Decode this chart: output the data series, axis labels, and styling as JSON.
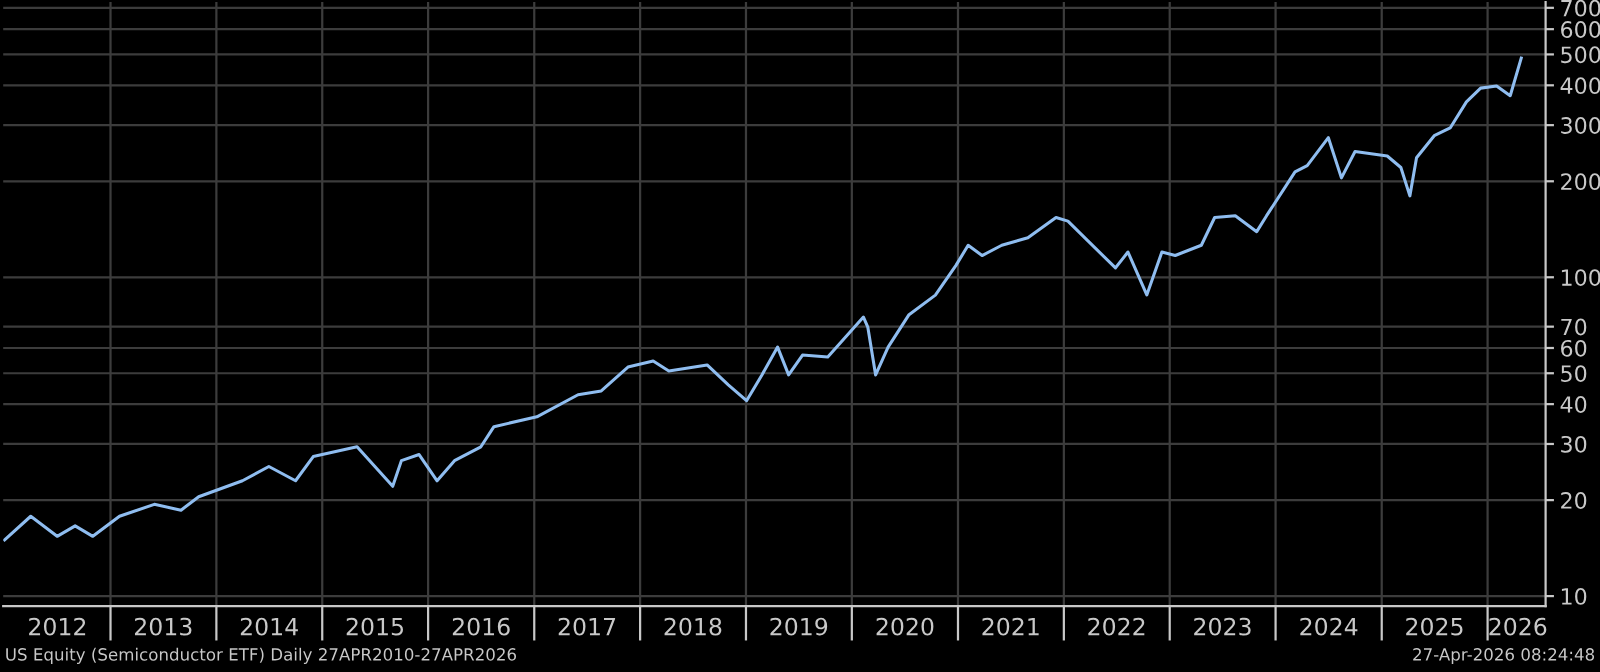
{
  "chart_data": {
    "type": "line",
    "log": "y",
    "grid": true,
    "legend": false,
    "marker": "none",
    "line_style": "solid",
    "annotations": [
      "US Equity (Semiconductor ETF) Daily 27APR2010-27APR2026",
      "27-Apr-2026 08:24:48"
    ],
    "xlim": [
      "2011-12-28",
      "2026-07-20"
    ],
    "xticks": [
      {
        "value": "2012-07-02",
        "label": "2012"
      },
      {
        "value": "2013-01-01",
        "label": null
      },
      {
        "value": "2013-07-02",
        "label": "2013"
      },
      {
        "value": "2014-01-01",
        "label": null
      },
      {
        "value": "2014-07-02",
        "label": "2014"
      },
      {
        "value": "2015-01-01",
        "label": null
      },
      {
        "value": "2015-07-02",
        "label": "2015"
      },
      {
        "value": "2016-01-01",
        "label": null
      },
      {
        "value": "2016-07-02",
        "label": "2016"
      },
      {
        "value": "2017-01-01",
        "label": null
      },
      {
        "value": "2017-07-02",
        "label": "2017"
      },
      {
        "value": "2018-01-01",
        "label": null
      },
      {
        "value": "2018-07-02",
        "label": "2018"
      },
      {
        "value": "2019-01-01",
        "label": null
      },
      {
        "value": "2019-07-02",
        "label": "2019"
      },
      {
        "value": "2020-01-01",
        "label": null
      },
      {
        "value": "2020-07-02",
        "label": "2020"
      },
      {
        "value": "2021-01-01",
        "label": null
      },
      {
        "value": "2021-07-02",
        "label": "2021"
      },
      {
        "value": "2022-01-01",
        "label": null
      },
      {
        "value": "2022-07-02",
        "label": "2022"
      },
      {
        "value": "2023-01-01",
        "label": null
      },
      {
        "value": "2023-07-02",
        "label": "2023"
      },
      {
        "value": "2024-01-01",
        "label": null
      },
      {
        "value": "2024-07-02",
        "label": "2024"
      },
      {
        "value": "2025-01-01",
        "label": null
      },
      {
        "value": "2025-07-02",
        "label": "2025"
      },
      {
        "value": "2026-01-01",
        "label": null
      },
      {
        "value": "2026-04-15",
        "label": "2026"
      }
    ],
    "ylim": [
      9.3,
      730
    ],
    "yticks": [
      10,
      20,
      30,
      40,
      50,
      60,
      70,
      100,
      200,
      300,
      400,
      500,
      600,
      700
    ],
    "series": [
      {
        "color": "#8fbdf0",
        "x": [
          "2012-01-02",
          "2012-04-01",
          "2012-07-01",
          "2012-09-01",
          "2012-11-01",
          "2013-02-01",
          "2013-06-01",
          "2013-09-01",
          "2013-11-01",
          "2014-04-01",
          "2014-07-01",
          "2014-10-01",
          "2014-12-01",
          "2015-05-01",
          "2015-09-01",
          "2015-10-01",
          "2015-12-01",
          "2016-02-01",
          "2016-04-01",
          "2016-07-01",
          "2016-08-15",
          "2017-01-10",
          "2017-06-01",
          "2017-08-20",
          "2017-11-20",
          "2018-02-15",
          "2018-04-10",
          "2018-08-20",
          "2018-11-01",
          "2019-01-03",
          "2019-02-25",
          "2019-04-20",
          "2019-05-28",
          "2019-07-15",
          "2019-10-10",
          "2020-02-10",
          "2020-02-25",
          "2020-03-23",
          "2020-05-05",
          "2020-07-15",
          "2020-10-15",
          "2020-12-25",
          "2021-02-05",
          "2021-03-25",
          "2021-06-01",
          "2021-08-30",
          "2021-12-05",
          "2022-01-15",
          "2022-03-25",
          "2022-06-28",
          "2022-08-10",
          "2022-10-14",
          "2022-12-05",
          "2023-01-20",
          "2023-04-20",
          "2023-06-05",
          "2023-08-15",
          "2023-10-28",
          "2023-12-01",
          "2024-03-08",
          "2024-04-19",
          "2024-07-01",
          "2024-08-15",
          "2024-10-01",
          "2025-01-20",
          "2025-03-08",
          "2025-04-08",
          "2025-05-01",
          "2025-07-01",
          "2025-08-25",
          "2025-10-20",
          "2025-12-08",
          "2026-02-01",
          "2026-03-20",
          "2026-04-27"
        ],
        "values": [
          15.0,
          17.8,
          15.4,
          16.6,
          15.4,
          17.8,
          19.4,
          18.6,
          20.5,
          23.0,
          25.5,
          23.0,
          27.4,
          29.4,
          22.1,
          26.6,
          27.8,
          23.0,
          26.6,
          29.4,
          34.0,
          36.5,
          42.8,
          44.0,
          52.3,
          54.6,
          50.8,
          53.1,
          46.0,
          41.0,
          49.4,
          60.4,
          49.4,
          57.0,
          56.2,
          75.0,
          69.8,
          49.4,
          60.4,
          76.1,
          87.9,
          109,
          126,
          117,
          126,
          133,
          154,
          150,
          130,
          107,
          120,
          88,
          120,
          117,
          126,
          154,
          156,
          139,
          156,
          214,
          224,
          274,
          205,
          248,
          240,
          221,
          180,
          237,
          278,
          294,
          355,
          392,
          398,
          371,
          487
        ]
      }
    ]
  }
}
